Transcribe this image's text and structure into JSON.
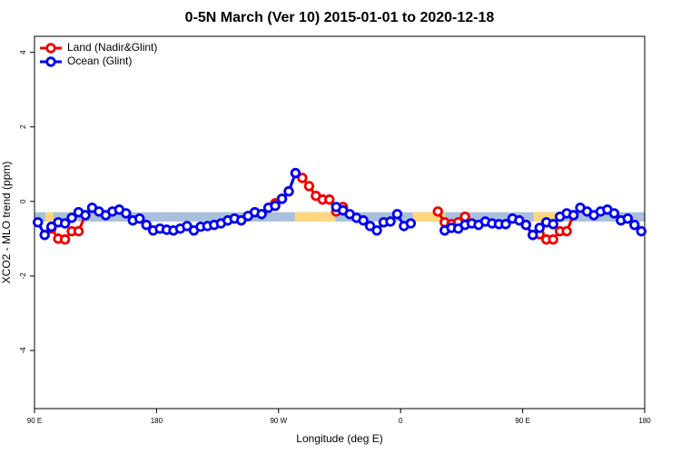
{
  "chart_data": {
    "type": "line",
    "title": "0-5N March (Ver 10)   2015-01-01 to 2020-12-18",
    "xlabel": "Longitude (deg E)",
    "ylabel": "XCO2 - MLO trend (ppm)",
    "xlim": [
      90,
      540
    ],
    "xticks": [
      {
        "value": 90,
        "label": "90 E"
      },
      {
        "value": 180,
        "label": "180"
      },
      {
        "value": 270,
        "label": "90 W"
      },
      {
        "value": 360,
        "label": "0"
      },
      {
        "value": 450,
        "label": "90 E"
      },
      {
        "value": 540,
        "label": "180"
      }
    ],
    "ylim": [
      -5.56,
      4.43
    ],
    "yticks": [
      -4,
      -2,
      0,
      2,
      4
    ],
    "legend": "top-left",
    "band": {
      "ymin": -0.54,
      "ymax": -0.29,
      "color": "#a9c0dd",
      "highlight_color": "#fdd67e",
      "highlight_ranges": [
        [
          98,
          104
        ],
        [
          115,
          122
        ],
        [
          282,
          312
        ],
        [
          369,
          393
        ],
        [
          458,
          480
        ]
      ]
    },
    "x": [
      92.5,
      97.5,
      102.5,
      107.5,
      112.5,
      117.5,
      122.5,
      127.5,
      132.5,
      137.5,
      142.5,
      147.5,
      152.5,
      157.5,
      162.5,
      167.5,
      172.5,
      177.5,
      182.5,
      187.5,
      192.5,
      197.5,
      202.5,
      207.5,
      212.5,
      217.5,
      222.5,
      227.5,
      232.5,
      237.5,
      242.5,
      247.5,
      252.5,
      257.5,
      262.5,
      267.5,
      272.5,
      277.5,
      282.5,
      287.5,
      292.5,
      297.5,
      302.5,
      307.5,
      312.5,
      317.5,
      322.5,
      327.5,
      332.5,
      337.5,
      342.5,
      347.5,
      352.5,
      357.5,
      362.5,
      367.5,
      372.5,
      377.5,
      382.5,
      387.5,
      392.5,
      397.5,
      402.5,
      407.5,
      412.5,
      417.5,
      422.5,
      427.5,
      432.5,
      437.5,
      442.5,
      447.5,
      452.5,
      457.5,
      462.5,
      467.5,
      472.5,
      477.5,
      482.5,
      487.5,
      492.5,
      497.5,
      502.5,
      507.5,
      512.5,
      517.5,
      522.5,
      527.5,
      532.5,
      537.5
    ],
    "series": [
      {
        "name": "Land (Nadir&Glint)",
        "color": "#ee0000",
        "values": [
          null,
          null,
          -0.73,
          -1.0,
          -1.02,
          -0.8,
          -0.8,
          -0.37,
          null,
          null,
          null,
          null,
          null,
          null,
          null,
          null,
          null,
          null,
          null,
          null,
          null,
          null,
          null,
          null,
          null,
          null,
          null,
          null,
          null,
          null,
          null,
          null,
          null,
          null,
          null,
          -0.05,
          0.07,
          0.27,
          0.76,
          0.63,
          0.41,
          0.15,
          0.05,
          0.05,
          -0.27,
          -0.15,
          null,
          null,
          null,
          null,
          null,
          null,
          null,
          null,
          null,
          null,
          null,
          null,
          null,
          -0.27,
          -0.56,
          -0.61,
          -0.56,
          -0.41,
          null,
          null,
          null,
          null,
          null,
          null,
          null,
          null,
          -0.63,
          -0.9,
          -0.88,
          -1.02,
          -1.02,
          -0.8,
          -0.8,
          -0.37,
          null,
          null,
          null,
          null,
          null,
          null,
          null,
          null,
          null,
          null
        ]
      },
      {
        "name": "Ocean (Glint)",
        "color": "#0000ee",
        "values": [
          -0.56,
          -0.9,
          -0.68,
          -0.56,
          -0.59,
          -0.44,
          -0.29,
          -0.37,
          -0.17,
          -0.27,
          -0.37,
          -0.27,
          -0.22,
          -0.32,
          -0.51,
          -0.46,
          -0.63,
          -0.78,
          -0.73,
          -0.76,
          -0.78,
          -0.73,
          -0.66,
          -0.78,
          -0.68,
          -0.66,
          -0.63,
          -0.59,
          -0.51,
          -0.46,
          -0.51,
          -0.39,
          -0.29,
          -0.34,
          -0.17,
          -0.12,
          0.07,
          0.27,
          0.76,
          null,
          null,
          null,
          null,
          null,
          -0.15,
          -0.24,
          -0.34,
          -0.44,
          -0.51,
          -0.66,
          -0.78,
          -0.56,
          -0.54,
          -0.34,
          -0.66,
          -0.59,
          null,
          null,
          null,
          null,
          -0.78,
          -0.71,
          -0.73,
          -0.63,
          -0.59,
          -0.63,
          -0.54,
          -0.59,
          -0.61,
          -0.61,
          -0.46,
          -0.51,
          -0.63,
          -0.9,
          -0.71,
          -0.56,
          -0.61,
          -0.41,
          -0.32,
          -0.37,
          -0.17,
          -0.27,
          -0.37,
          -0.27,
          -0.22,
          -0.32,
          -0.51,
          -0.46,
          -0.63,
          -0.8
        ]
      }
    ]
  }
}
